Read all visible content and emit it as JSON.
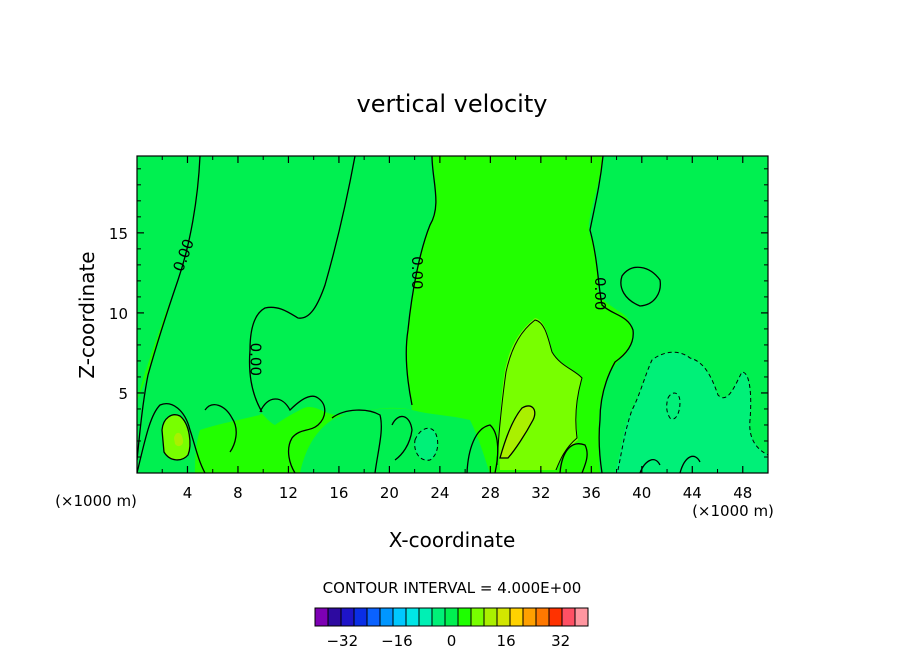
{
  "chart_data": {
    "type": "contour",
    "title": "vertical velocity",
    "xlabel": "X-coordinate",
    "ylabel": "Z-coordinate",
    "x_unit": "(×1000 m)",
    "x_unit_right": "(×1000 m)",
    "xlim": [
      0,
      50
    ],
    "ylim": [
      0,
      19.8
    ],
    "x_ticks": [
      "4",
      "8",
      "12",
      "16",
      "20",
      "24",
      "28",
      "32",
      "36",
      "40",
      "44",
      "48"
    ],
    "y_ticks": [
      "5",
      "10",
      "15"
    ],
    "contour_labels": [
      {
        "text": "0.00",
        "x": 3.7,
        "z": 13.6
      },
      {
        "text": "0.00",
        "x": 9.4,
        "z": 7.1
      },
      {
        "text": "0.00",
        "x": 22.2,
        "z": 12.5
      },
      {
        "text": "0.00",
        "x": 36.7,
        "z": 11.2
      }
    ],
    "contour_interval_text": "CONTOUR INTERVAL =  4.000E+00",
    "colorbar": {
      "levels": [
        -40,
        -36,
        -32,
        -28,
        -24,
        -20,
        -16,
        -12,
        -8,
        -4,
        0,
        4,
        8,
        12,
        16,
        20,
        24,
        28,
        32,
        36,
        40
      ],
      "colors": [
        "#7d00b4",
        "#2d0aa0",
        "#1e14c8",
        "#0a2ee6",
        "#0a62ff",
        "#0096ff",
        "#00c8ff",
        "#00e6e6",
        "#00f0b4",
        "#00f078",
        "#00f050",
        "#1eff00",
        "#78ff00",
        "#aaf000",
        "#d2e600",
        "#ffd200",
        "#ffa000",
        "#ff7800",
        "#ff3200",
        "#ff5064",
        "#ff96a0"
      ],
      "tick_labels": [
        "-32",
        "-16",
        "0",
        "16",
        "32"
      ],
      "tick_values": [
        -32,
        -16,
        0,
        16,
        32
      ]
    }
  }
}
